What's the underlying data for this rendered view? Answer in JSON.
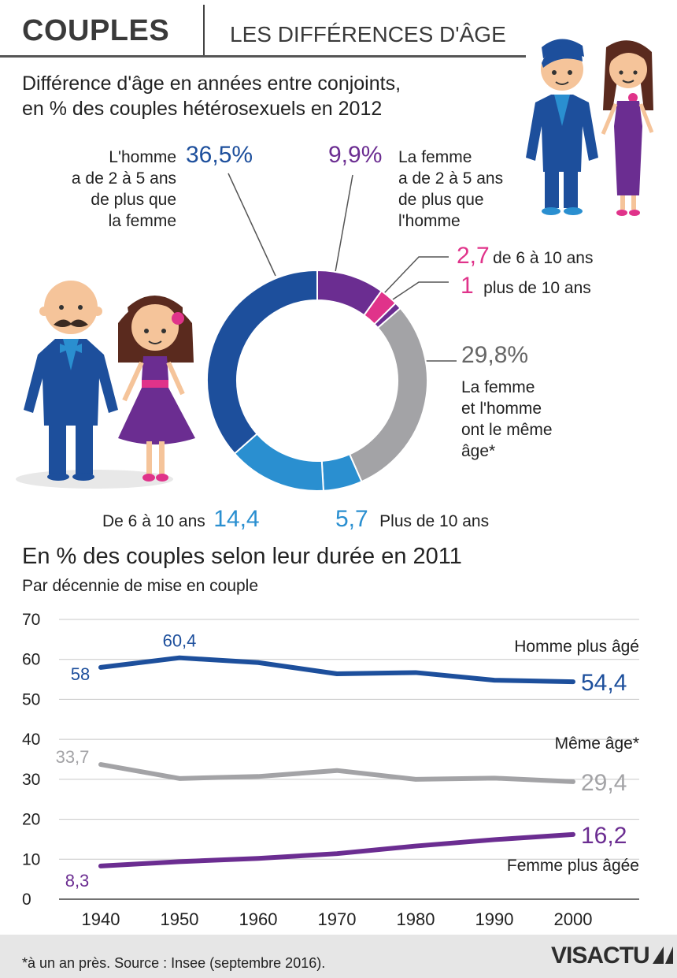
{
  "header": {
    "title": "COUPLES",
    "subtitle": "LES DIFFÉRENCES D'ÂGE"
  },
  "donut_title": {
    "line1": "Différence d'âge en années entre conjoints,",
    "line2": "en % des couples hétérosexuels en 2012"
  },
  "line_title": "En % des couples selon leur durée en 2011",
  "line_subtitle": "Par décennie de mise en couple",
  "footnote": "*à un an près. Source : Insee (septembre 2016).",
  "logo": {
    "part1": "VIS",
    "part2": "ACTU"
  },
  "colors": {
    "dark_blue": "#1d4f9c",
    "purple": "#6b2d91",
    "pink": "#e0338a",
    "grey": "#a3a3a6",
    "light_blue": "#2a8fd0"
  },
  "labels": {
    "man_older_2_5": [
      "L'homme",
      "a de 2 à 5 ans",
      "de plus que",
      "la femme"
    ],
    "woman_older_2_5": [
      "La femme",
      "a de 2 à 5 ans",
      "de plus que",
      "l'homme"
    ],
    "woman_6_10": "de 6 à 10 ans",
    "woman_10_plus": "plus de 10 ans",
    "same_age": [
      "La femme",
      "et l'homme",
      "ont le même",
      "âge*"
    ],
    "man_6_10": "De 6 à 10 ans",
    "man_10_plus": "Plus de 10 ans"
  },
  "value_labels": {
    "man_older_2_5": "36,5",
    "woman_older_2_5": "9,9",
    "woman_6_10": "2,7",
    "woman_10_plus": "1",
    "same_age": "29,8",
    "man_10_plus": "5,7",
    "man_6_10": "14,4",
    "percent_sign": "%"
  },
  "chart_data": [
    {
      "type": "pie",
      "title": "Différence d'âge en années entre conjoints, en % des couples hétérosexuels en 2012",
      "start": "top",
      "direction": "clockwise",
      "slices": [
        {
          "key": "woman_older_2_5",
          "value": 9.9,
          "color": "#6b2d91"
        },
        {
          "key": "woman_6_10",
          "value": 2.7,
          "color": "#e0338a"
        },
        {
          "key": "woman_10_plus",
          "value": 1.0,
          "color": "#6b2d91"
        },
        {
          "key": "same_age",
          "value": 29.8,
          "color": "#a3a3a6"
        },
        {
          "key": "man_10_plus",
          "value": 5.7,
          "color": "#2a8fd0"
        },
        {
          "key": "man_6_10",
          "value": 14.4,
          "color": "#2a8fd0"
        },
        {
          "key": "man_older_2_5",
          "value": 36.5,
          "color": "#1d4f9c"
        }
      ]
    },
    {
      "type": "line",
      "title": "En % des couples selon leur durée en 2011",
      "subtitle": "Par décennie de mise en couple",
      "x": [
        1940,
        1950,
        1960,
        1970,
        1980,
        1990,
        2000
      ],
      "ylim": [
        0,
        70
      ],
      "yticks": [
        0,
        10,
        20,
        30,
        40,
        50,
        60,
        70
      ],
      "grid": true,
      "series": [
        {
          "name": "Homme plus âgé",
          "color": "#1d4f9c",
          "values": [
            58,
            60.4,
            59.2,
            56.4,
            56.7,
            54.8,
            54.4
          ],
          "labels": [
            {
              "i": 0,
              "text": "58"
            },
            {
              "i": 1,
              "text": "60,4"
            },
            {
              "i": 6,
              "text": "54,4"
            }
          ]
        },
        {
          "name": "Même âge*",
          "color": "#a3a3a6",
          "values": [
            33.7,
            30.2,
            30.7,
            32.2,
            30.0,
            30.3,
            29.4
          ],
          "labels": [
            {
              "i": 0,
              "text": "33,7"
            },
            {
              "i": 6,
              "text": "29,4"
            }
          ]
        },
        {
          "name": "Femme plus âgée",
          "color": "#6b2d91",
          "values": [
            8.3,
            9.4,
            10.2,
            11.4,
            13.3,
            14.9,
            16.2
          ],
          "labels": [
            {
              "i": 0,
              "text": "8,3"
            },
            {
              "i": 6,
              "text": "16,2"
            }
          ]
        }
      ]
    }
  ]
}
